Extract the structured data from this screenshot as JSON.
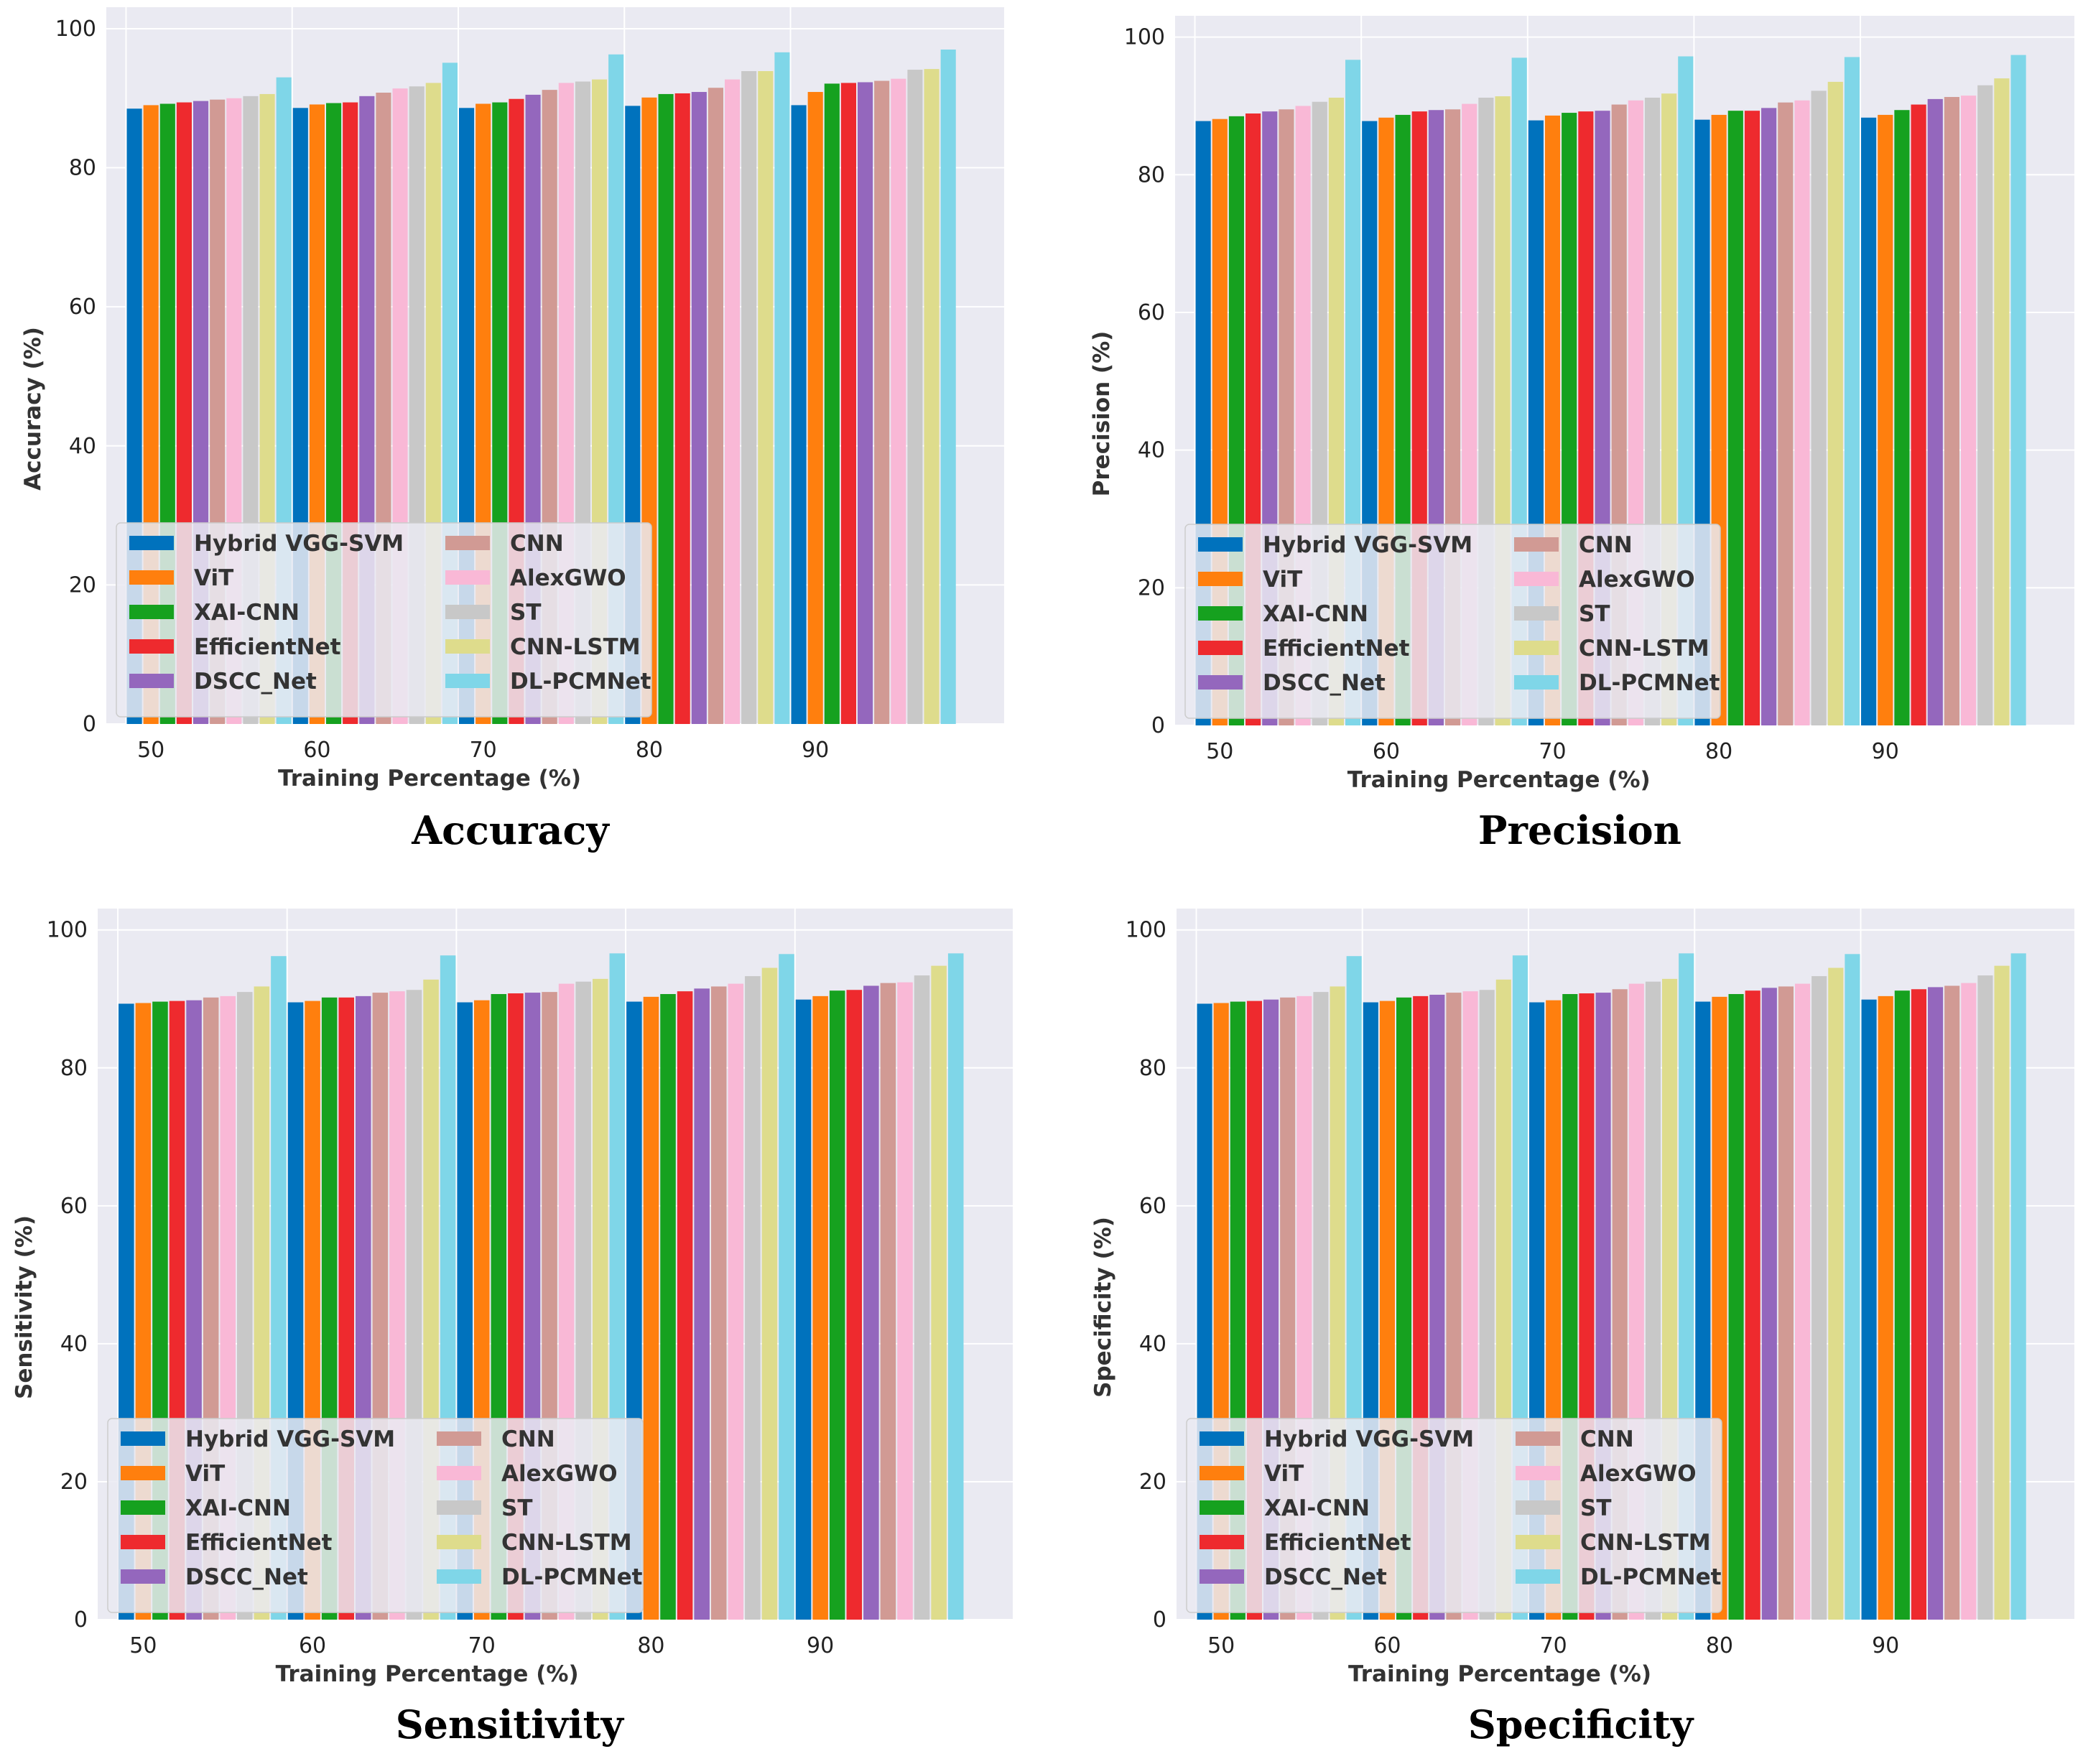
{
  "figure": {
    "series_colors": [
      "#0072bd",
      "#ff7f0e",
      "#16a11f",
      "#ee2a2e",
      "#9467bd",
      "#d19a94",
      "#f9b8d6",
      "#c8c8c8",
      "#dedc8c",
      "#7fd6e8"
    ],
    "plot_background": "#eaeaf2",
    "grid_color": "#ffffff"
  },
  "chart_data": [
    {
      "type": "bar",
      "title": "Accuracy",
      "xlabel": "Training Percentage (%)",
      "ylabel": "Accuracy (%)",
      "ylim": [
        0,
        100
      ],
      "yticks": [
        0,
        20,
        40,
        60,
        80,
        100
      ],
      "grid": true,
      "legend_position": "lower-left",
      "categories": [
        "50",
        "60",
        "70",
        "80",
        "90"
      ],
      "series": [
        {
          "name": "Hybrid VGG-SVM",
          "values": [
            88.5,
            88.6,
            88.6,
            88.9,
            89.0
          ]
        },
        {
          "name": "ViT",
          "values": [
            89.0,
            89.1,
            89.2,
            90.1,
            90.9
          ]
        },
        {
          "name": "XAI-CNN",
          "values": [
            89.2,
            89.3,
            89.4,
            90.6,
            92.1
          ]
        },
        {
          "name": "EfficientNet",
          "values": [
            89.4,
            89.4,
            89.9,
            90.7,
            92.2
          ]
        },
        {
          "name": "DSCC_Net",
          "values": [
            89.6,
            90.3,
            90.5,
            90.9,
            92.3
          ]
        },
        {
          "name": "CNN",
          "values": [
            89.8,
            90.8,
            91.2,
            91.5,
            92.5
          ]
        },
        {
          "name": "AlexGWO",
          "values": [
            90.0,
            91.4,
            92.2,
            92.7,
            92.8
          ]
        },
        {
          "name": "ST",
          "values": [
            90.3,
            91.7,
            92.4,
            93.9,
            94.1
          ]
        },
        {
          "name": "CNN-LSTM",
          "values": [
            90.6,
            92.2,
            92.7,
            93.9,
            94.2
          ]
        },
        {
          "name": "DL-PCMNet",
          "values": [
            93.0,
            95.1,
            96.3,
            96.6,
            97.0
          ]
        }
      ]
    },
    {
      "type": "bar",
      "title": "Precision",
      "xlabel": "Training Percentage (%)",
      "ylabel": "Precision (%)",
      "ylim": [
        0,
        100
      ],
      "yticks": [
        0,
        20,
        40,
        60,
        80,
        100
      ],
      "grid": true,
      "legend_position": "lower-left",
      "categories": [
        "50",
        "60",
        "70",
        "80",
        "90"
      ],
      "series": [
        {
          "name": "Hybrid VGG-SVM",
          "values": [
            87.8,
            87.8,
            87.9,
            88.0,
            88.3
          ]
        },
        {
          "name": "ViT",
          "values": [
            88.1,
            88.3,
            88.6,
            88.7,
            88.7
          ]
        },
        {
          "name": "XAI-CNN",
          "values": [
            88.5,
            88.7,
            89.0,
            89.3,
            89.4
          ]
        },
        {
          "name": "EfficientNet",
          "values": [
            88.9,
            89.2,
            89.2,
            89.3,
            90.2
          ]
        },
        {
          "name": "DSCC_Net",
          "values": [
            89.2,
            89.4,
            89.3,
            89.7,
            91.0
          ]
        },
        {
          "name": "CNN",
          "values": [
            89.5,
            89.5,
            90.2,
            90.5,
            91.3
          ]
        },
        {
          "name": "AlexGWO",
          "values": [
            90.0,
            90.3,
            90.8,
            90.8,
            91.5
          ]
        },
        {
          "name": "ST",
          "values": [
            90.6,
            91.2,
            91.2,
            92.2,
            93.0
          ]
        },
        {
          "name": "CNN-LSTM",
          "values": [
            91.2,
            91.4,
            91.8,
            93.5,
            94.0
          ]
        },
        {
          "name": "DL-PCMNet",
          "values": [
            96.7,
            97.0,
            97.2,
            97.1,
            97.4
          ]
        }
      ]
    },
    {
      "type": "bar",
      "title": "Sensitivity",
      "xlabel": "Training Percentage (%)",
      "ylabel": "Sensitivity (%)",
      "ylim": [
        0,
        100
      ],
      "yticks": [
        0,
        20,
        40,
        60,
        80,
        100
      ],
      "grid": true,
      "legend_position": "lower-left",
      "categories": [
        "50",
        "60",
        "70",
        "80",
        "90"
      ],
      "series": [
        {
          "name": "Hybrid VGG-SVM",
          "values": [
            89.3,
            89.5,
            89.5,
            89.6,
            89.9
          ]
        },
        {
          "name": "ViT",
          "values": [
            89.4,
            89.7,
            89.8,
            90.3,
            90.4
          ]
        },
        {
          "name": "XAI-CNN",
          "values": [
            89.6,
            90.2,
            90.7,
            90.7,
            91.2
          ]
        },
        {
          "name": "EfficientNet",
          "values": [
            89.7,
            90.2,
            90.8,
            91.1,
            91.3
          ]
        },
        {
          "name": "DSCC_Net",
          "values": [
            89.8,
            90.4,
            90.9,
            91.5,
            91.9
          ]
        },
        {
          "name": "CNN",
          "values": [
            90.2,
            90.9,
            91.0,
            91.8,
            92.3
          ]
        },
        {
          "name": "AlexGWO",
          "values": [
            90.4,
            91.1,
            92.2,
            92.2,
            92.4
          ]
        },
        {
          "name": "ST",
          "values": [
            91.0,
            91.3,
            92.5,
            93.3,
            93.4
          ]
        },
        {
          "name": "CNN-LSTM",
          "values": [
            91.8,
            92.8,
            92.9,
            94.5,
            94.8
          ]
        },
        {
          "name": "DL-PCMNet",
          "values": [
            96.2,
            96.3,
            96.6,
            96.5,
            96.6
          ]
        }
      ]
    },
    {
      "type": "bar",
      "title": "Specificity",
      "xlabel": "Training Percentage (%)",
      "ylabel": "Specificity (%)",
      "ylim": [
        0,
        100
      ],
      "yticks": [
        0,
        20,
        40,
        60,
        80,
        100
      ],
      "grid": true,
      "legend_position": "lower-left",
      "categories": [
        "50",
        "60",
        "70",
        "80",
        "90"
      ],
      "series": [
        {
          "name": "Hybrid VGG-SVM",
          "values": [
            89.3,
            89.5,
            89.5,
            89.6,
            89.9
          ]
        },
        {
          "name": "ViT",
          "values": [
            89.4,
            89.7,
            89.8,
            90.3,
            90.4
          ]
        },
        {
          "name": "XAI-CNN",
          "values": [
            89.6,
            90.2,
            90.7,
            90.7,
            91.2
          ]
        },
        {
          "name": "EfficientNet",
          "values": [
            89.7,
            90.4,
            90.8,
            91.2,
            91.4
          ]
        },
        {
          "name": "DSCC_Net",
          "values": [
            89.9,
            90.6,
            90.9,
            91.6,
            91.7
          ]
        },
        {
          "name": "CNN",
          "values": [
            90.2,
            90.9,
            91.4,
            91.8,
            91.9
          ]
        },
        {
          "name": "AlexGWO",
          "values": [
            90.4,
            91.1,
            92.2,
            92.2,
            92.3
          ]
        },
        {
          "name": "ST",
          "values": [
            91.0,
            91.3,
            92.5,
            93.3,
            93.4
          ]
        },
        {
          "name": "CNN-LSTM",
          "values": [
            91.8,
            92.8,
            92.9,
            94.5,
            94.8
          ]
        },
        {
          "name": "DL-PCMNet",
          "values": [
            96.2,
            96.3,
            96.6,
            96.5,
            96.6
          ]
        }
      ]
    }
  ]
}
